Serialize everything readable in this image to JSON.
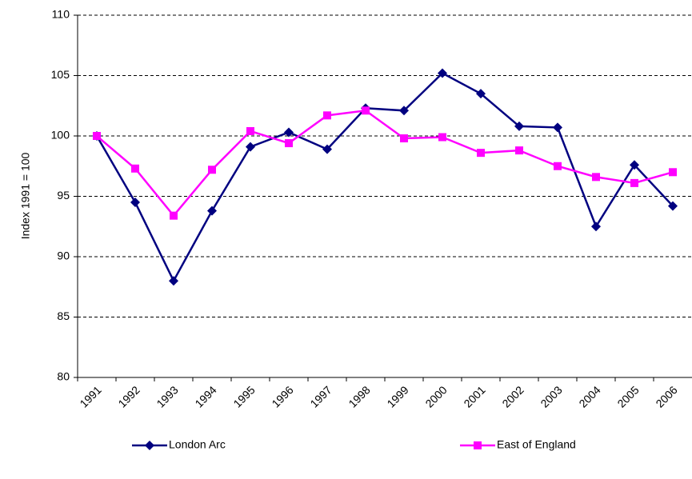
{
  "chart_data": {
    "type": "line",
    "y_label": "Index 1991 = 100",
    "categories": [
      "1991",
      "1992",
      "1993",
      "1994",
      "1995",
      "1996",
      "1997",
      "1998",
      "1999",
      "2000",
      "2001",
      "2002",
      "2003",
      "2004",
      "2005",
      "2006"
    ],
    "series": [
      {
        "name": "London Arc",
        "color": "#000080",
        "marker": "diamond",
        "values": [
          100,
          94.5,
          88,
          93.8,
          99.1,
          100.3,
          98.9,
          102.3,
          102.1,
          105.2,
          103.5,
          100.8,
          100.7,
          92.5,
          97.6,
          94.2
        ]
      },
      {
        "name": "East of England",
        "color": "#ff00ff",
        "marker": "square",
        "values": [
          100,
          97.3,
          93.4,
          97.2,
          100.4,
          99.4,
          101.7,
          102.1,
          99.8,
          99.9,
          98.6,
          98.8,
          97.5,
          96.6,
          96.1,
          97.0
        ]
      }
    ],
    "ylim": [
      80,
      110
    ],
    "yticks": [
      80,
      85,
      90,
      95,
      100,
      105,
      110
    ],
    "grid": true,
    "legend": "bottom"
  }
}
